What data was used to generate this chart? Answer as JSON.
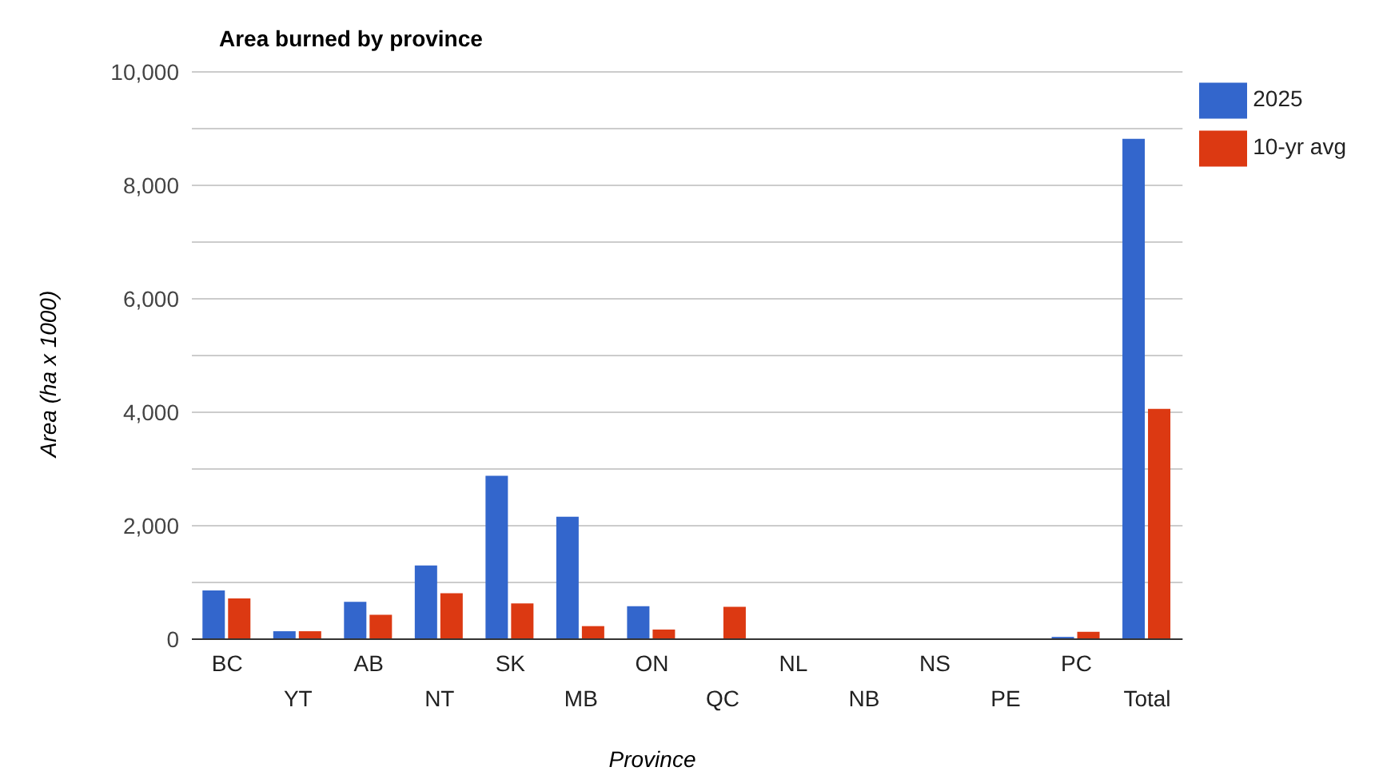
{
  "chart_data": {
    "type": "bar",
    "title": "Area burned by province",
    "xlabel": "Province",
    "ylabel": "Area (ha x 1000)",
    "categories": [
      "BC",
      "YT",
      "AB",
      "NT",
      "SK",
      "MB",
      "ON",
      "QC",
      "NL",
      "NB",
      "NS",
      "PE",
      "PC",
      "Total"
    ],
    "series": [
      {
        "name": "2025",
        "color": "#3366cc",
        "values": [
          860,
          140,
          660,
          1300,
          2880,
          2160,
          580,
          0,
          0,
          0,
          0,
          0,
          40,
          8820
        ]
      },
      {
        "name": "10-yr avg",
        "color": "#dc3912",
        "values": [
          720,
          140,
          430,
          810,
          630,
          230,
          170,
          570,
          0,
          0,
          0,
          0,
          130,
          4060
        ]
      }
    ],
    "ylim": [
      0,
      10000
    ],
    "yticks": [
      0,
      {
        "value": 1000,
        "label": null
      },
      {
        "value": 2000,
        "label": "2,000"
      },
      {
        "value": 3000,
        "label": null
      },
      {
        "value": 4000,
        "label": "4,000"
      },
      {
        "value": 5000,
        "label": null
      },
      {
        "value": 6000,
        "label": "6,000"
      },
      {
        "value": 7000,
        "label": null
      },
      {
        "value": 8000,
        "label": "8,000"
      },
      {
        "value": 9000,
        "label": null
      },
      {
        "value": 10000,
        "label": "10,000"
      }
    ],
    "grid": "y",
    "legend": "top right"
  }
}
